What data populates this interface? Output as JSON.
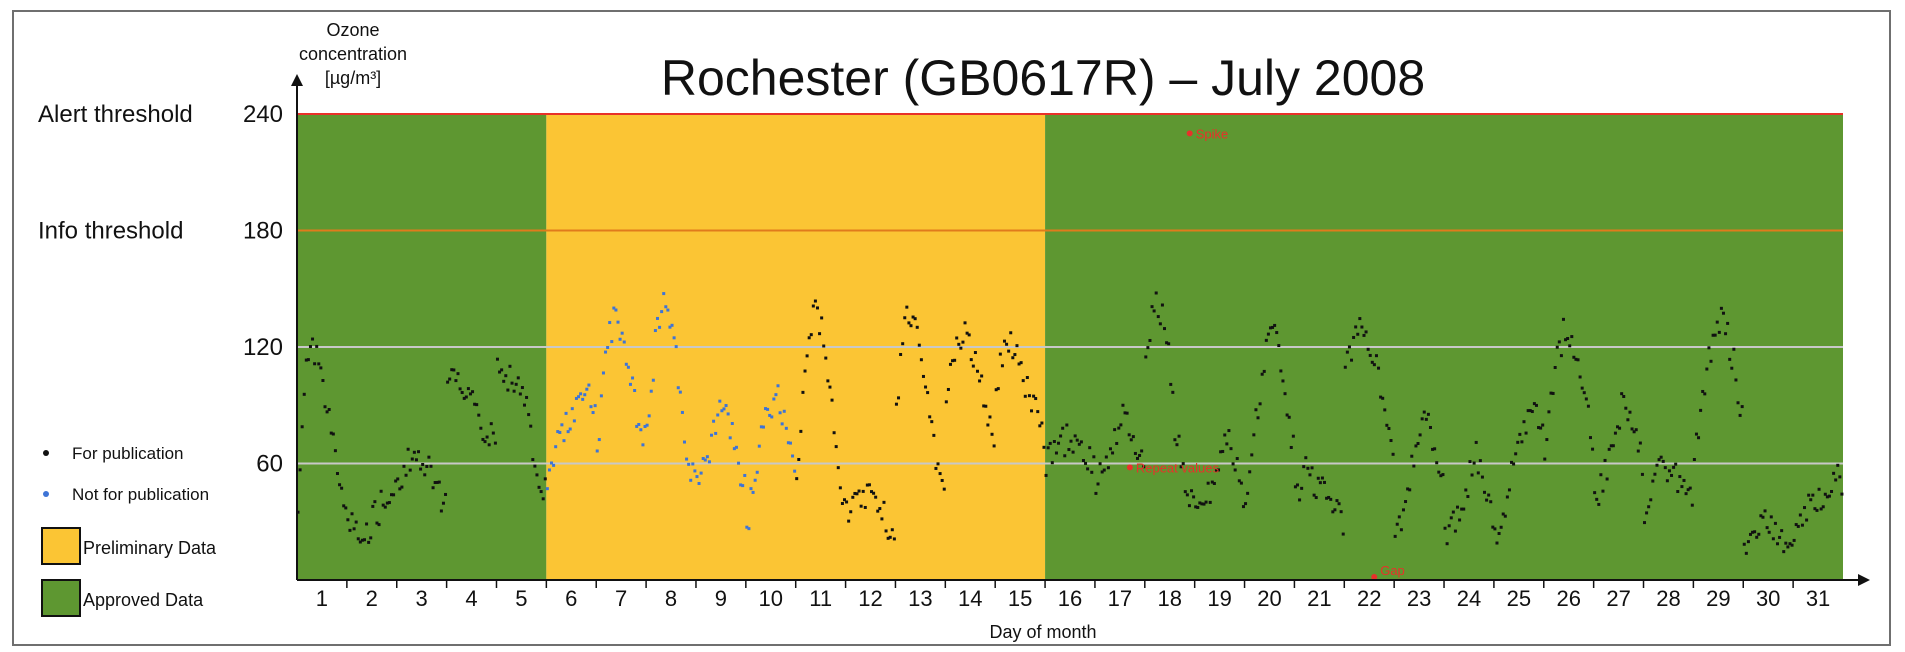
{
  "chart_data": {
    "type": "scatter",
    "title": "Rochester (GB0617R) – July 2008",
    "ylabel_lines": [
      "Ozone",
      "concentration",
      "[µg/m³]"
    ],
    "xlabel": "Day of month",
    "xlim": [
      0.5,
      31.5
    ],
    "ylim": [
      0,
      240
    ],
    "yticks": [
      60,
      120,
      180,
      240
    ],
    "xticks": [
      1,
      2,
      3,
      4,
      5,
      6,
      7,
      8,
      9,
      10,
      11,
      12,
      13,
      14,
      15,
      16,
      17,
      18,
      19,
      20,
      21,
      22,
      23,
      24,
      25,
      26,
      27,
      28,
      29,
      30,
      31
    ],
    "thresholds": [
      {
        "label": "Alert threshold",
        "value": 240,
        "color": "#e8312a"
      },
      {
        "label": "Info threshold",
        "value": 180,
        "color": "#e07b1c"
      }
    ],
    "gridlines": [
      60,
      120
    ],
    "regions": [
      {
        "label": "Approved Data",
        "from": 0.5,
        "to": 5.5,
        "color": "#5e9731"
      },
      {
        "label": "Preliminary Data",
        "from": 5.5,
        "to": 15.5,
        "color": "#fbc534"
      },
      {
        "label": "Approved Data",
        "from": 15.5,
        "to": 31.5,
        "color": "#5e9731"
      }
    ],
    "legend": {
      "placement": "left",
      "items": [
        {
          "label": "For publication",
          "color": "#111111",
          "kind": "dot"
        },
        {
          "label": "Not for publication",
          "color": "#3e74d6",
          "kind": "dot"
        },
        {
          "label": "Preliminary Data",
          "color": "#fbc534",
          "kind": "box"
        },
        {
          "label": "Approved Data",
          "color": "#5e9731",
          "kind": "box"
        }
      ]
    },
    "annotations": [
      {
        "label": "Spike",
        "x": 18.4,
        "y": 230,
        "color": "#e8312a"
      },
      {
        "label": "Repeat values",
        "x": 17.2,
        "y": 58,
        "color": "#e8312a"
      },
      {
        "label": "Gap",
        "x": 22.1,
        "y": 0,
        "color": "#e8312a"
      }
    ],
    "series": [
      {
        "name": "For publication",
        "color": "#111111",
        "daily": [
          [
            40,
            120,
            112,
            85,
            55,
            35
          ],
          [
            30,
            28,
            26,
            35,
            45,
            50
          ],
          [
            45,
            62,
            60,
            58,
            45,
            38
          ],
          [
            100,
            110,
            95,
            85,
            75,
            70
          ],
          [
            110,
            105,
            100,
            85,
            55,
            45
          ],
          [
            0,
            0,
            0,
            0,
            0,
            0
          ],
          [
            0,
            0,
            0,
            0,
            0,
            0
          ],
          [
            0,
            0,
            0,
            0,
            0,
            0
          ],
          [
            0,
            0,
            0,
            0,
            0,
            0
          ],
          [
            0,
            0,
            0,
            0,
            0,
            0
          ],
          [
            50,
            120,
            140,
            115,
            60,
            35
          ],
          [
            35,
            40,
            45,
            38,
            30,
            25
          ],
          [
            90,
            140,
            125,
            105,
            60,
            35
          ],
          [
            95,
            120,
            130,
            110,
            90,
            70
          ],
          [
            100,
            125,
            115,
            100,
            85,
            70
          ],
          [
            60,
            68,
            72,
            70,
            65,
            60
          ],
          [
            50,
            60,
            75,
            85,
            70,
            55
          ],
          [
            115,
            145,
            130,
            75,
            50,
            35
          ],
          [
            30,
            40,
            55,
            75,
            60,
            40
          ],
          [
            45,
            80,
            120,
            125,
            90,
            60
          ],
          [
            40,
            60,
            50,
            45,
            35,
            30
          ],
          [
            110,
            125,
            130,
            115,
            90,
            60
          ],
          [
            20,
            40,
            65,
            85,
            70,
            45
          ],
          [
            20,
            30,
            45,
            65,
            50,
            30
          ],
          [
            20,
            40,
            60,
            75,
            90,
            80
          ],
          [
            70,
            110,
            130,
            120,
            95,
            70
          ],
          [
            40,
            55,
            75,
            95,
            80,
            55
          ],
          [
            35,
            50,
            60,
            55,
            45,
            40
          ],
          [
            60,
            100,
            130,
            135,
            110,
            80
          ],
          [
            20,
            25,
            30,
            25,
            20,
            18
          ],
          [
            28,
            35,
            40,
            45,
            55,
            50
          ]
        ]
      },
      {
        "name": "Not for publication",
        "color": "#3e74d6",
        "daily": [
          [
            0,
            0,
            0,
            0,
            0,
            0
          ],
          [
            0,
            0,
            0,
            0,
            0,
            0
          ],
          [
            0,
            0,
            0,
            0,
            0,
            0
          ],
          [
            0,
            0,
            0,
            0,
            0,
            0
          ],
          [
            0,
            0,
            0,
            0,
            0,
            0
          ],
          [
            55,
            70,
            80,
            90,
            100,
            80
          ],
          [
            65,
            120,
            140,
            110,
            85,
            70
          ],
          [
            75,
            130,
            145,
            110,
            65,
            45
          ],
          [
            50,
            60,
            85,
            90,
            60,
            45
          ],
          [
            25,
            60,
            85,
            95,
            80,
            55
          ],
          [
            0,
            0,
            0,
            0,
            0,
            0
          ],
          [
            0,
            0,
            0,
            0,
            0,
            0
          ],
          [
            0,
            0,
            0,
            0,
            0,
            0
          ],
          [
            0,
            0,
            0,
            0,
            0,
            0
          ],
          [
            0,
            0,
            0,
            0,
            0,
            0
          ],
          [
            0,
            0,
            0,
            0,
            0,
            0
          ],
          [
            0,
            0,
            0,
            0,
            0,
            0
          ],
          [
            0,
            0,
            0,
            0,
            0,
            0
          ],
          [
            0,
            0,
            0,
            0,
            0,
            0
          ],
          [
            0,
            0,
            0,
            0,
            0,
            0
          ],
          [
            0,
            0,
            0,
            0,
            0,
            0
          ],
          [
            0,
            0,
            0,
            0,
            0,
            0
          ],
          [
            0,
            0,
            0,
            0,
            0,
            0
          ],
          [
            0,
            0,
            0,
            0,
            0,
            0
          ],
          [
            0,
            0,
            0,
            0,
            0,
            0
          ],
          [
            0,
            0,
            0,
            0,
            0,
            0
          ],
          [
            0,
            0,
            0,
            0,
            0,
            0
          ],
          [
            0,
            0,
            0,
            0,
            0,
            0
          ],
          [
            0,
            0,
            0,
            0,
            0,
            0
          ],
          [
            0,
            0,
            0,
            0,
            0,
            0
          ],
          [
            0,
            0,
            0,
            0,
            0,
            0
          ]
        ]
      }
    ]
  }
}
